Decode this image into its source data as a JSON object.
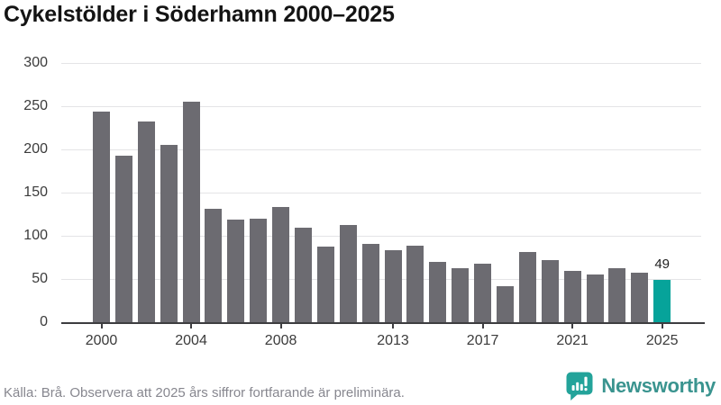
{
  "header": {
    "title": "Cykelstölder i Söderhamn 2000–2025"
  },
  "chart_data": {
    "type": "bar",
    "title": "Cykelstölder i Söderhamn 2000–2025",
    "categories": [
      "2000",
      "2001",
      "2002",
      "2003",
      "2004",
      "2005",
      "2006",
      "2007",
      "2008",
      "2009",
      "2010",
      "2011",
      "2012",
      "2013",
      "2014",
      "2015",
      "2016",
      "2017",
      "2018",
      "2019",
      "2020",
      "2021",
      "2022",
      "2023",
      "2024",
      "2025"
    ],
    "values": [
      244,
      193,
      232,
      205,
      255,
      131,
      119,
      120,
      133,
      109,
      87,
      113,
      91,
      83,
      89,
      70,
      62,
      68,
      42,
      81,
      72,
      59,
      55,
      62,
      57,
      49
    ],
    "ylim": [
      0,
      300
    ],
    "yticks": [
      0,
      50,
      100,
      150,
      200,
      250,
      300
    ],
    "xtick_labels": [
      "2000",
      "2004",
      "2008",
      "2013",
      "2017",
      "2021",
      "2025"
    ],
    "grid": "horizontal",
    "legend": "none",
    "bar_color": "#6c6b71",
    "highlight": {
      "category": "2025",
      "color": "#06a39a",
      "data_label": "49"
    }
  },
  "footer": {
    "source_note": "Källa: Brå. Observera att 2025 års siffror fortfarande är preliminära.",
    "brand": "Newsworthy",
    "brand_color": "#3a948f",
    "logo_icon": "bar-chart-speech-bubble-icon",
    "logo_color": "#23a39a"
  }
}
